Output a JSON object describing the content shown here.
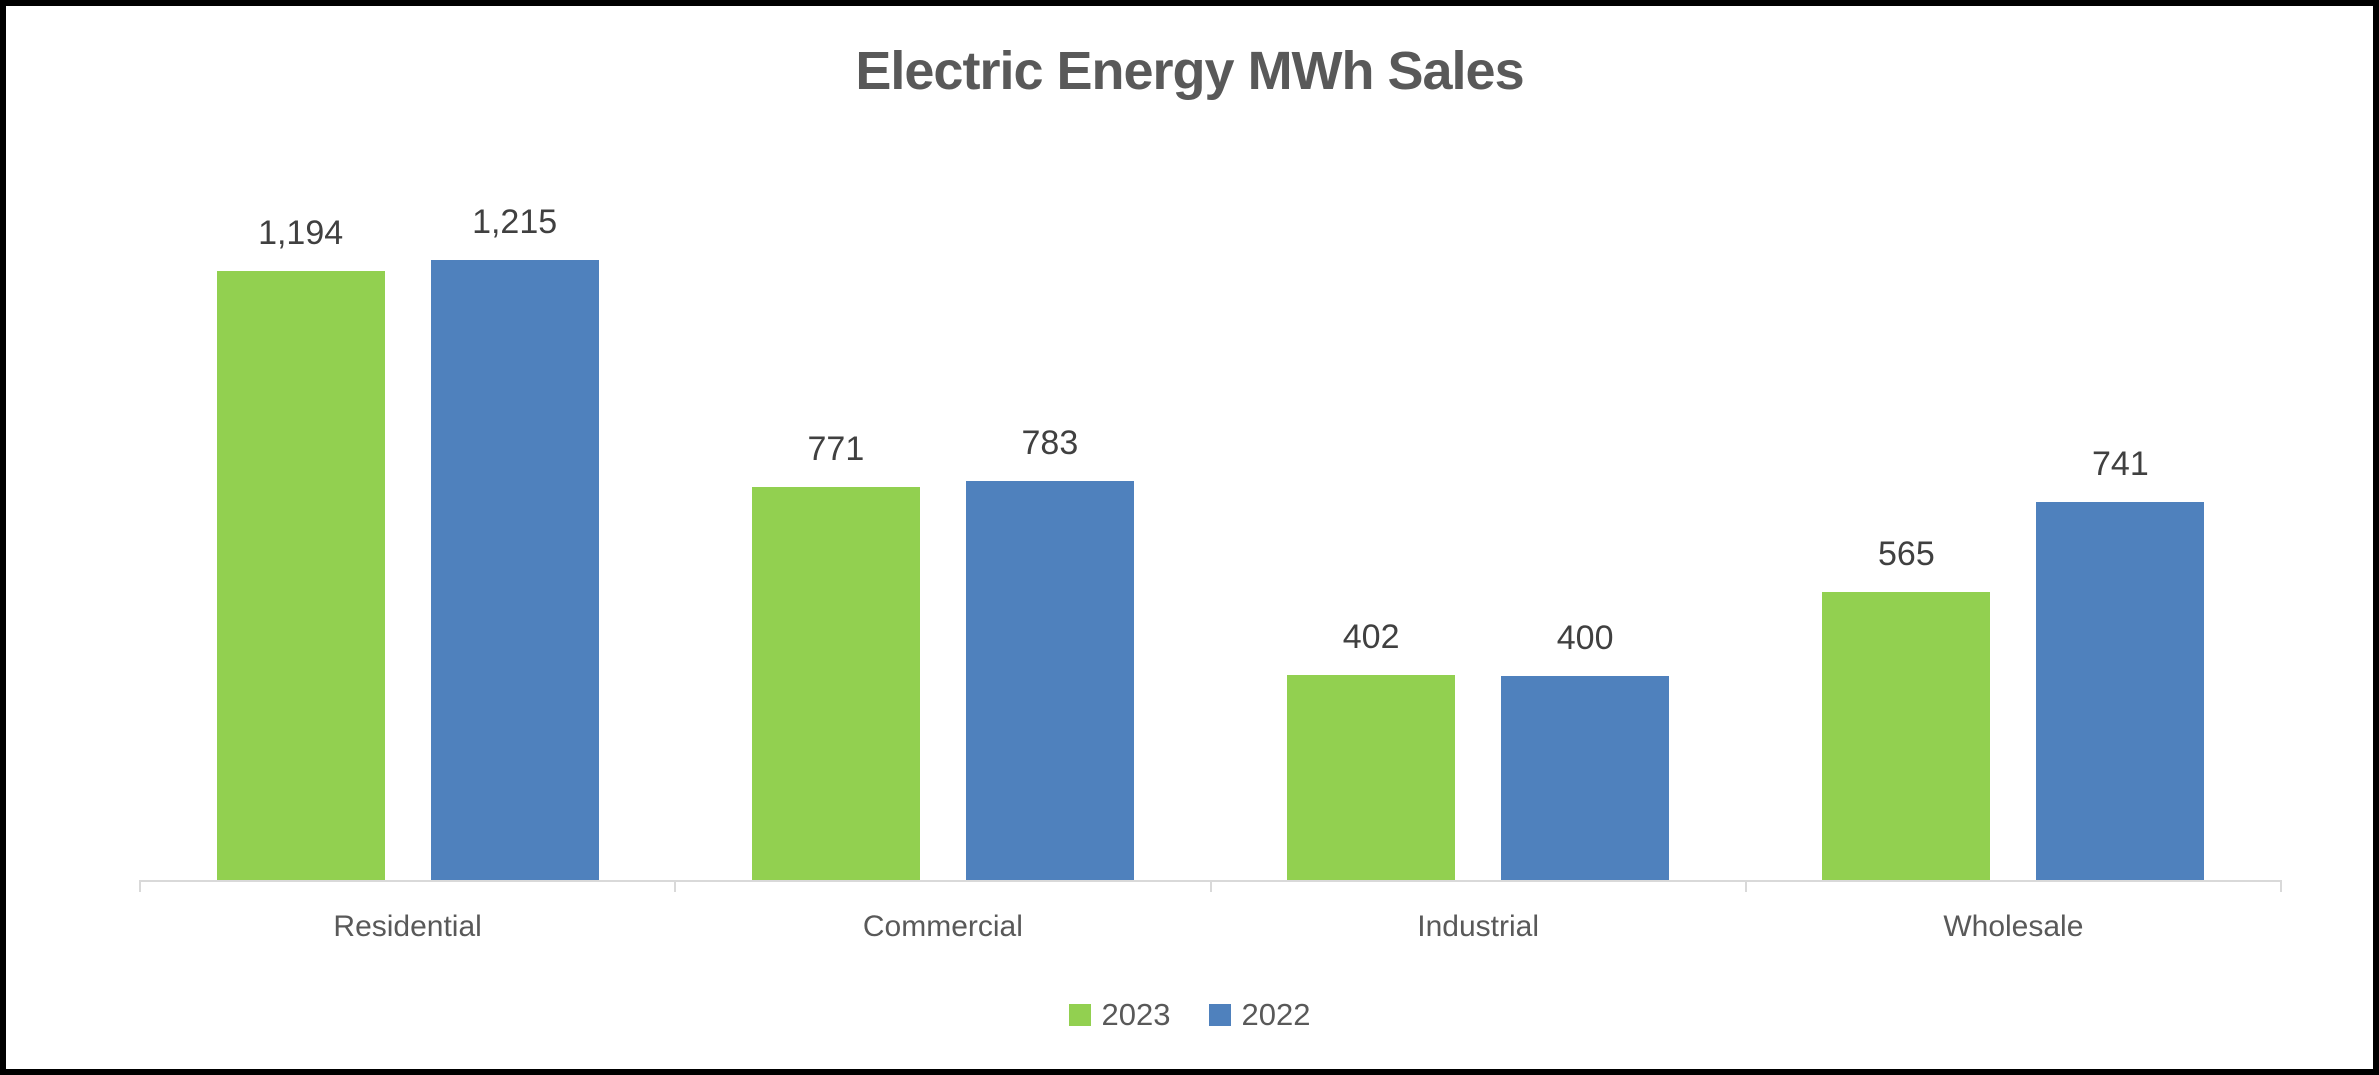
{
  "page": {
    "background_color": "#FFFFFF",
    "border_color": "#000000"
  },
  "chart_data": {
    "type": "bar",
    "title": "Electric Energy MWh Sales",
    "categories": [
      "Residential",
      "Commercial",
      "Industrial",
      "Wholesale"
    ],
    "series": [
      {
        "name": "2023",
        "color": "#92D050",
        "values": [
          1194,
          771,
          402,
          565
        ],
        "labels": [
          "1,194",
          "771",
          "402",
          "565"
        ]
      },
      {
        "name": "2022",
        "color": "#4F81BD",
        "values": [
          1215,
          783,
          400,
          741
        ],
        "labels": [
          "1,215",
          "783",
          "400",
          "741"
        ]
      }
    ],
    "xlabel": "",
    "ylabel": "",
    "ylim": [
      0,
      1400
    ],
    "grid": false,
    "y_axis_visible": false,
    "data_labels": true,
    "legend_position": "bottom",
    "axis_line_color": "#D9D9D9",
    "title_color": "#595959",
    "axis_text_color": "#595959",
    "data_label_color": "#404040"
  }
}
